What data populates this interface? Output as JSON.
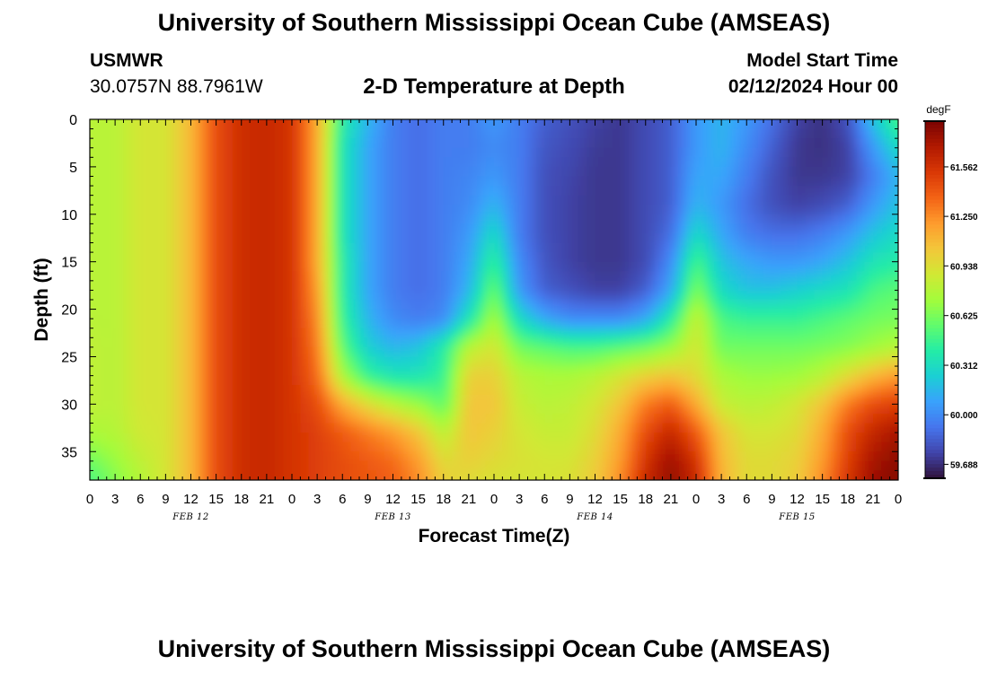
{
  "header": {
    "title": "University of Southern Mississippi Ocean Cube (AMSEAS)",
    "station_name": "USMWR",
    "station_coords": "30.0757N  88.7961W",
    "plot_title": "2-D Temperature at Depth",
    "start_label": "Model Start Time",
    "start_value": "02/12/2024 Hour 00"
  },
  "footer": {
    "title": "University of Southern Mississippi Ocean Cube (AMSEAS)"
  },
  "colors": {
    "palette": [
      "#30123b",
      "#4145ab",
      "#4675ed",
      "#39a2fc",
      "#1bcfd4",
      "#24eca6",
      "#61fc6c",
      "#a4fc3b",
      "#d1e834",
      "#f3c63a",
      "#fe9b2d",
      "#f36315",
      "#d93806",
      "#b11901",
      "#7a0402"
    ]
  },
  "chart_data": {
    "type": "heatmap",
    "title": "2-D Temperature at Depth",
    "xlabel": "Forecast Time(Z)",
    "ylabel": "Depth (ft)",
    "x_hours_range": [
      0,
      96
    ],
    "x_tick_labels": [
      "0",
      "3",
      "6",
      "9",
      "12",
      "15",
      "18",
      "21",
      "0",
      "3",
      "6",
      "9",
      "12",
      "15",
      "18",
      "21",
      "0",
      "3",
      "6",
      "9",
      "12",
      "15",
      "18",
      "21",
      "0",
      "3",
      "6",
      "9",
      "12",
      "15",
      "18",
      "21",
      "0"
    ],
    "date_labels": [
      {
        "label": "FEB 12",
        "hour": 12
      },
      {
        "label": "FEB 13",
        "hour": 36
      },
      {
        "label": "FEB 14",
        "hour": 60
      },
      {
        "label": "FEB 15",
        "hour": 84
      }
    ],
    "ylim": [
      0,
      38
    ],
    "y_ticks": [
      0,
      5,
      10,
      15,
      20,
      25,
      30,
      35
    ],
    "colorbar": {
      "unit": "degF",
      "min": 59.6,
      "max": 61.85,
      "ticks": [
        "61.562",
        "61.250",
        "60.938",
        "60.625",
        "60.312",
        "60.000",
        "59.688"
      ]
    },
    "depth_levels_ft": [
      0,
      3,
      6,
      9,
      12,
      15,
      18,
      21,
      24,
      27,
      30,
      33,
      36,
      38
    ],
    "temperature_degF_rows_by_depth_cols_by_3h": [
      [
        60.8,
        60.8,
        60.9,
        60.9,
        61.1,
        61.45,
        61.58,
        61.6,
        61.55,
        61.15,
        60.4,
        60.15,
        59.95,
        59.9,
        59.95,
        59.95,
        60.05,
        59.95,
        59.85,
        59.8,
        59.75,
        59.72,
        59.78,
        59.85,
        60.05,
        60.15,
        60.05,
        59.9,
        59.75,
        59.7,
        59.8,
        60.2,
        60.5
      ],
      [
        60.8,
        60.8,
        60.9,
        60.9,
        61.1,
        61.45,
        61.58,
        61.6,
        61.55,
        61.15,
        60.35,
        60.1,
        59.95,
        59.9,
        59.95,
        59.95,
        60.0,
        59.95,
        59.82,
        59.78,
        59.73,
        59.72,
        59.78,
        59.85,
        60.05,
        60.15,
        60.0,
        59.85,
        59.72,
        59.7,
        59.75,
        60.05,
        60.3
      ],
      [
        60.8,
        60.8,
        60.9,
        60.9,
        61.1,
        61.45,
        61.58,
        61.6,
        61.55,
        61.15,
        60.35,
        60.1,
        59.95,
        59.9,
        59.95,
        59.98,
        60.05,
        59.95,
        59.8,
        59.76,
        59.72,
        59.72,
        59.78,
        59.85,
        60.1,
        60.1,
        59.95,
        59.8,
        59.72,
        59.72,
        59.75,
        59.95,
        60.15
      ],
      [
        60.8,
        60.8,
        60.9,
        60.9,
        61.1,
        61.45,
        61.58,
        61.6,
        61.55,
        61.15,
        60.35,
        60.1,
        59.95,
        59.9,
        59.95,
        60.0,
        60.15,
        59.95,
        59.8,
        59.75,
        59.72,
        59.72,
        59.78,
        59.85,
        60.15,
        60.05,
        59.9,
        59.8,
        59.75,
        59.78,
        59.85,
        60.05,
        60.2
      ],
      [
        60.8,
        60.8,
        60.9,
        60.9,
        61.1,
        61.45,
        61.58,
        61.6,
        61.55,
        61.15,
        60.35,
        60.1,
        59.95,
        59.9,
        59.95,
        60.05,
        60.3,
        59.95,
        59.8,
        59.75,
        59.72,
        59.72,
        59.78,
        59.9,
        60.3,
        60.1,
        59.95,
        59.9,
        59.9,
        59.95,
        60.05,
        60.2,
        60.3
      ],
      [
        60.8,
        60.8,
        60.9,
        60.9,
        61.1,
        61.45,
        61.58,
        61.6,
        61.55,
        61.15,
        60.4,
        60.1,
        59.95,
        59.9,
        59.95,
        60.1,
        60.45,
        60.0,
        59.82,
        59.75,
        59.72,
        59.72,
        59.78,
        60.0,
        60.5,
        60.2,
        60.1,
        60.05,
        60.05,
        60.1,
        60.2,
        60.35,
        60.4
      ],
      [
        60.8,
        60.8,
        60.9,
        60.9,
        61.1,
        61.45,
        61.58,
        61.6,
        61.55,
        61.2,
        60.4,
        60.1,
        59.95,
        59.9,
        59.95,
        60.15,
        60.6,
        60.05,
        59.85,
        59.8,
        59.75,
        59.75,
        59.85,
        60.1,
        60.65,
        60.3,
        60.2,
        60.2,
        60.25,
        60.3,
        60.35,
        60.5,
        60.55
      ],
      [
        60.8,
        60.8,
        60.9,
        60.9,
        61.1,
        61.45,
        61.58,
        61.6,
        61.55,
        61.25,
        60.45,
        60.15,
        60.0,
        59.95,
        60.0,
        60.35,
        60.75,
        60.3,
        60.1,
        60.0,
        60.0,
        60.0,
        60.1,
        60.4,
        60.85,
        60.5,
        60.45,
        60.45,
        60.45,
        60.5,
        60.55,
        60.6,
        60.62
      ],
      [
        60.82,
        60.8,
        60.9,
        60.9,
        61.1,
        61.45,
        61.58,
        61.6,
        61.55,
        61.3,
        60.55,
        60.25,
        60.15,
        60.2,
        60.4,
        60.8,
        60.9,
        60.6,
        60.55,
        60.5,
        60.5,
        60.55,
        60.6,
        60.7,
        60.9,
        60.6,
        60.6,
        60.6,
        60.6,
        60.62,
        60.65,
        60.72,
        60.78
      ],
      [
        60.82,
        60.8,
        60.9,
        60.9,
        61.1,
        61.45,
        61.58,
        61.6,
        61.55,
        61.35,
        60.75,
        60.45,
        60.35,
        60.35,
        60.45,
        61.0,
        61.0,
        60.8,
        60.75,
        60.75,
        60.8,
        60.9,
        61.0,
        61.05,
        60.95,
        60.75,
        60.7,
        60.7,
        60.72,
        60.8,
        60.95,
        61.1,
        61.2
      ],
      [
        60.82,
        60.8,
        60.9,
        60.9,
        61.1,
        61.45,
        61.58,
        61.6,
        61.55,
        61.45,
        61.15,
        60.95,
        60.8,
        60.7,
        60.55,
        61.05,
        61.05,
        60.85,
        60.8,
        60.82,
        60.9,
        61.05,
        61.3,
        61.4,
        61.15,
        60.85,
        60.8,
        60.82,
        60.9,
        61.05,
        61.3,
        61.45,
        61.5
      ],
      [
        60.75,
        60.78,
        60.88,
        60.9,
        61.1,
        61.45,
        61.58,
        61.6,
        61.55,
        61.5,
        61.4,
        61.3,
        61.2,
        61.05,
        60.8,
        61.05,
        61.0,
        60.9,
        60.85,
        60.85,
        60.95,
        61.15,
        61.45,
        61.62,
        61.4,
        61.05,
        60.9,
        60.9,
        60.95,
        61.15,
        61.45,
        61.62,
        61.72
      ],
      [
        60.6,
        60.7,
        60.82,
        60.9,
        61.1,
        61.45,
        61.58,
        61.6,
        61.55,
        61.5,
        61.45,
        61.4,
        61.35,
        61.2,
        60.95,
        61.0,
        60.95,
        60.92,
        60.9,
        60.9,
        61.0,
        61.2,
        61.55,
        61.75,
        61.55,
        61.1,
        60.95,
        60.95,
        61.0,
        61.2,
        61.5,
        61.72,
        61.8
      ],
      [
        60.5,
        60.65,
        60.78,
        60.9,
        61.1,
        61.45,
        61.58,
        61.6,
        61.55,
        61.5,
        61.45,
        61.42,
        61.38,
        61.25,
        61.0,
        60.95,
        60.92,
        60.9,
        60.9,
        60.92,
        61.02,
        61.25,
        61.6,
        61.78,
        61.6,
        61.12,
        60.95,
        60.95,
        61.02,
        61.25,
        61.55,
        61.75,
        61.82
      ]
    ]
  }
}
